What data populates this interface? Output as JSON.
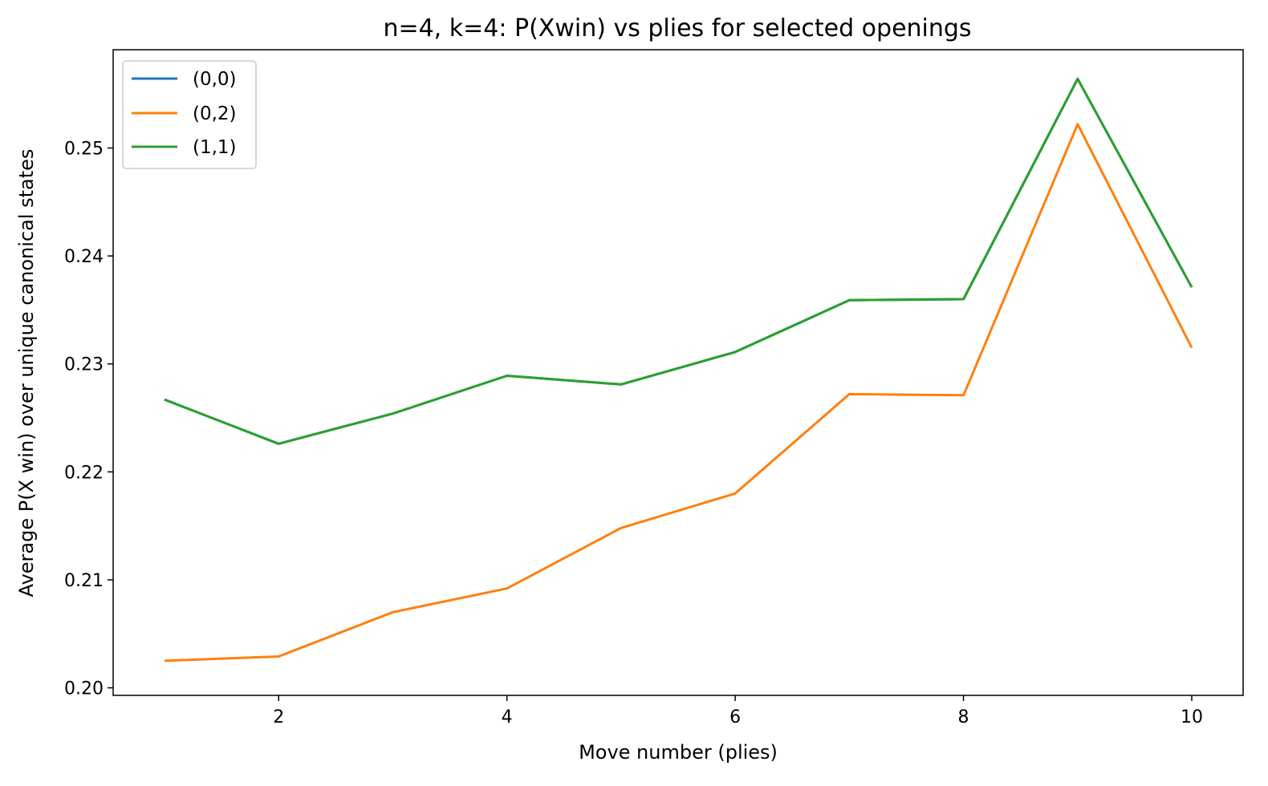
{
  "chart_data": {
    "type": "line",
    "title": "n=4, k=4: P(Xwin) vs plies for selected openings",
    "xlabel": "Move number (plies)",
    "ylabel": "Average P(X win) over unique canonical states",
    "x": [
      1,
      2,
      3,
      4,
      5,
      6,
      7,
      8,
      9,
      10
    ],
    "xlim": [
      0.55,
      10.45
    ],
    "ylim": [
      0.1993,
      0.2591
    ],
    "xticks": [
      "2",
      "4",
      "6",
      "8",
      "10"
    ],
    "yticks": [
      "0.20",
      "0.21",
      "0.22",
      "0.23",
      "0.24",
      "0.25"
    ],
    "grid": false,
    "legend_position": "upper-left",
    "series": [
      {
        "name": "(0,0)",
        "color": "#1f77b4",
        "values": [
          0.2267,
          0.2226,
          0.2254,
          0.2289,
          0.2281,
          0.2311,
          0.2359,
          0.236,
          0.2564,
          0.2371
        ]
      },
      {
        "name": "(0,2)",
        "color": "#ff7f0e",
        "values": [
          0.2025,
          0.2029,
          0.207,
          0.2092,
          0.2148,
          0.218,
          0.2272,
          0.2271,
          0.2522,
          0.2315
        ]
      },
      {
        "name": "(1,1)",
        "color": "#2ca02c",
        "values": [
          0.2267,
          0.2226,
          0.2254,
          0.2289,
          0.2281,
          0.2311,
          0.2359,
          0.236,
          0.2564,
          0.2371
        ]
      }
    ]
  }
}
